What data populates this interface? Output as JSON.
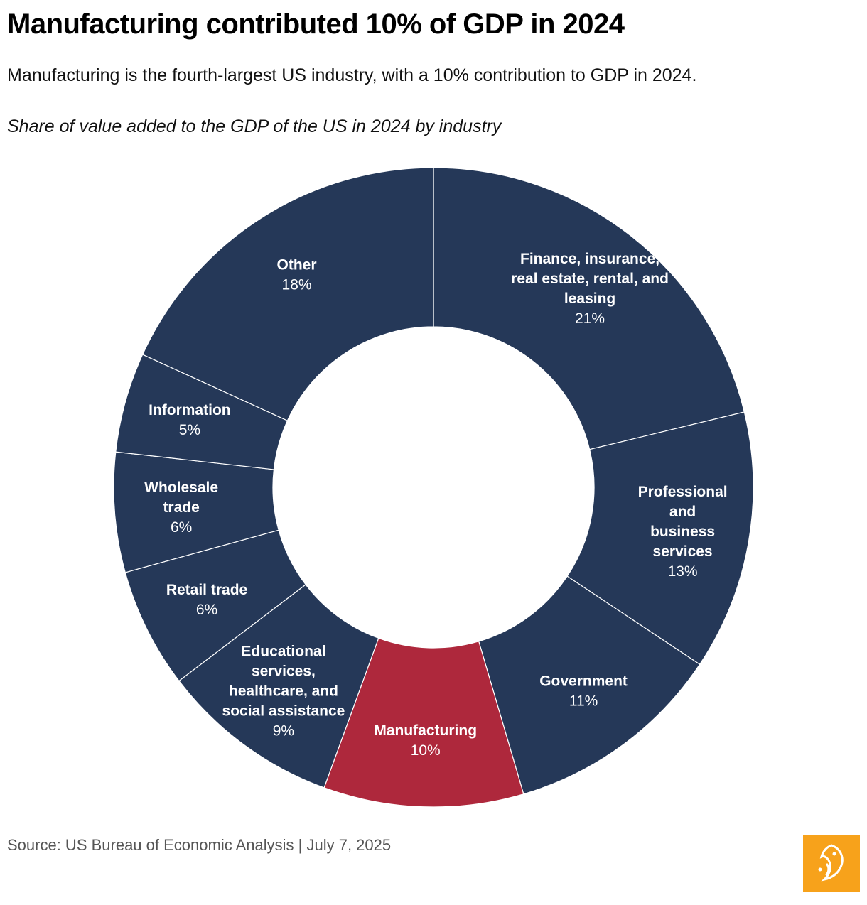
{
  "header": {
    "title": "Manufacturing contributed 10% of GDP in 2024",
    "subtitle": "Manufacturing is the fourth-largest US industry, with a 10% contribution to GDP in 2024.",
    "chart_caption": "Share of value added to the GDP of the US in 2024 by industry"
  },
  "chart_data": {
    "type": "pie",
    "style": "donut",
    "title": "Share of value added to the GDP of the US in 2024 by industry",
    "unit": "%",
    "slices": [
      {
        "name": "Finance, insurance, real estate, rental, and leasing",
        "lines": [
          "Finance, insurance,",
          "real estate, rental, and",
          "leasing"
        ],
        "value": 21,
        "label": "21%",
        "color": "#253858"
      },
      {
        "name": "Professional and business services",
        "lines": [
          "Professional",
          "and",
          "business",
          "services"
        ],
        "value": 13,
        "label": "13%",
        "color": "#253858"
      },
      {
        "name": "Government",
        "lines": [
          "Government"
        ],
        "value": 11,
        "label": "11%",
        "color": "#253858"
      },
      {
        "name": "Manufacturing",
        "lines": [
          "Manufacturing"
        ],
        "value": 10,
        "label": "10%",
        "color": "#ae283c"
      },
      {
        "name": "Educational services, healthcare, and social assistance",
        "lines": [
          "Educational",
          "services,",
          "healthcare, and",
          "social assistance"
        ],
        "value": 9,
        "label": "9%",
        "color": "#253858"
      },
      {
        "name": "Retail trade",
        "lines": [
          "Retail trade"
        ],
        "value": 6,
        "label": "6%",
        "color": "#253858"
      },
      {
        "name": "Wholesale trade",
        "lines": [
          "Wholesale",
          "trade"
        ],
        "value": 6,
        "label": "6%",
        "color": "#253858"
      },
      {
        "name": "Information",
        "lines": [
          "Information"
        ],
        "value": 5,
        "label": "5%",
        "color": "#253858"
      },
      {
        "name": "Other",
        "lines": [
          "Other"
        ],
        "value": 18,
        "label": "18%",
        "color": "#253858"
      }
    ]
  },
  "footer": {
    "source": "Source: US Bureau of Economic Analysis | July 7, 2025"
  },
  "logo": {
    "icon": "al-jazeera-logo-icon",
    "color": "#f7a21b"
  }
}
